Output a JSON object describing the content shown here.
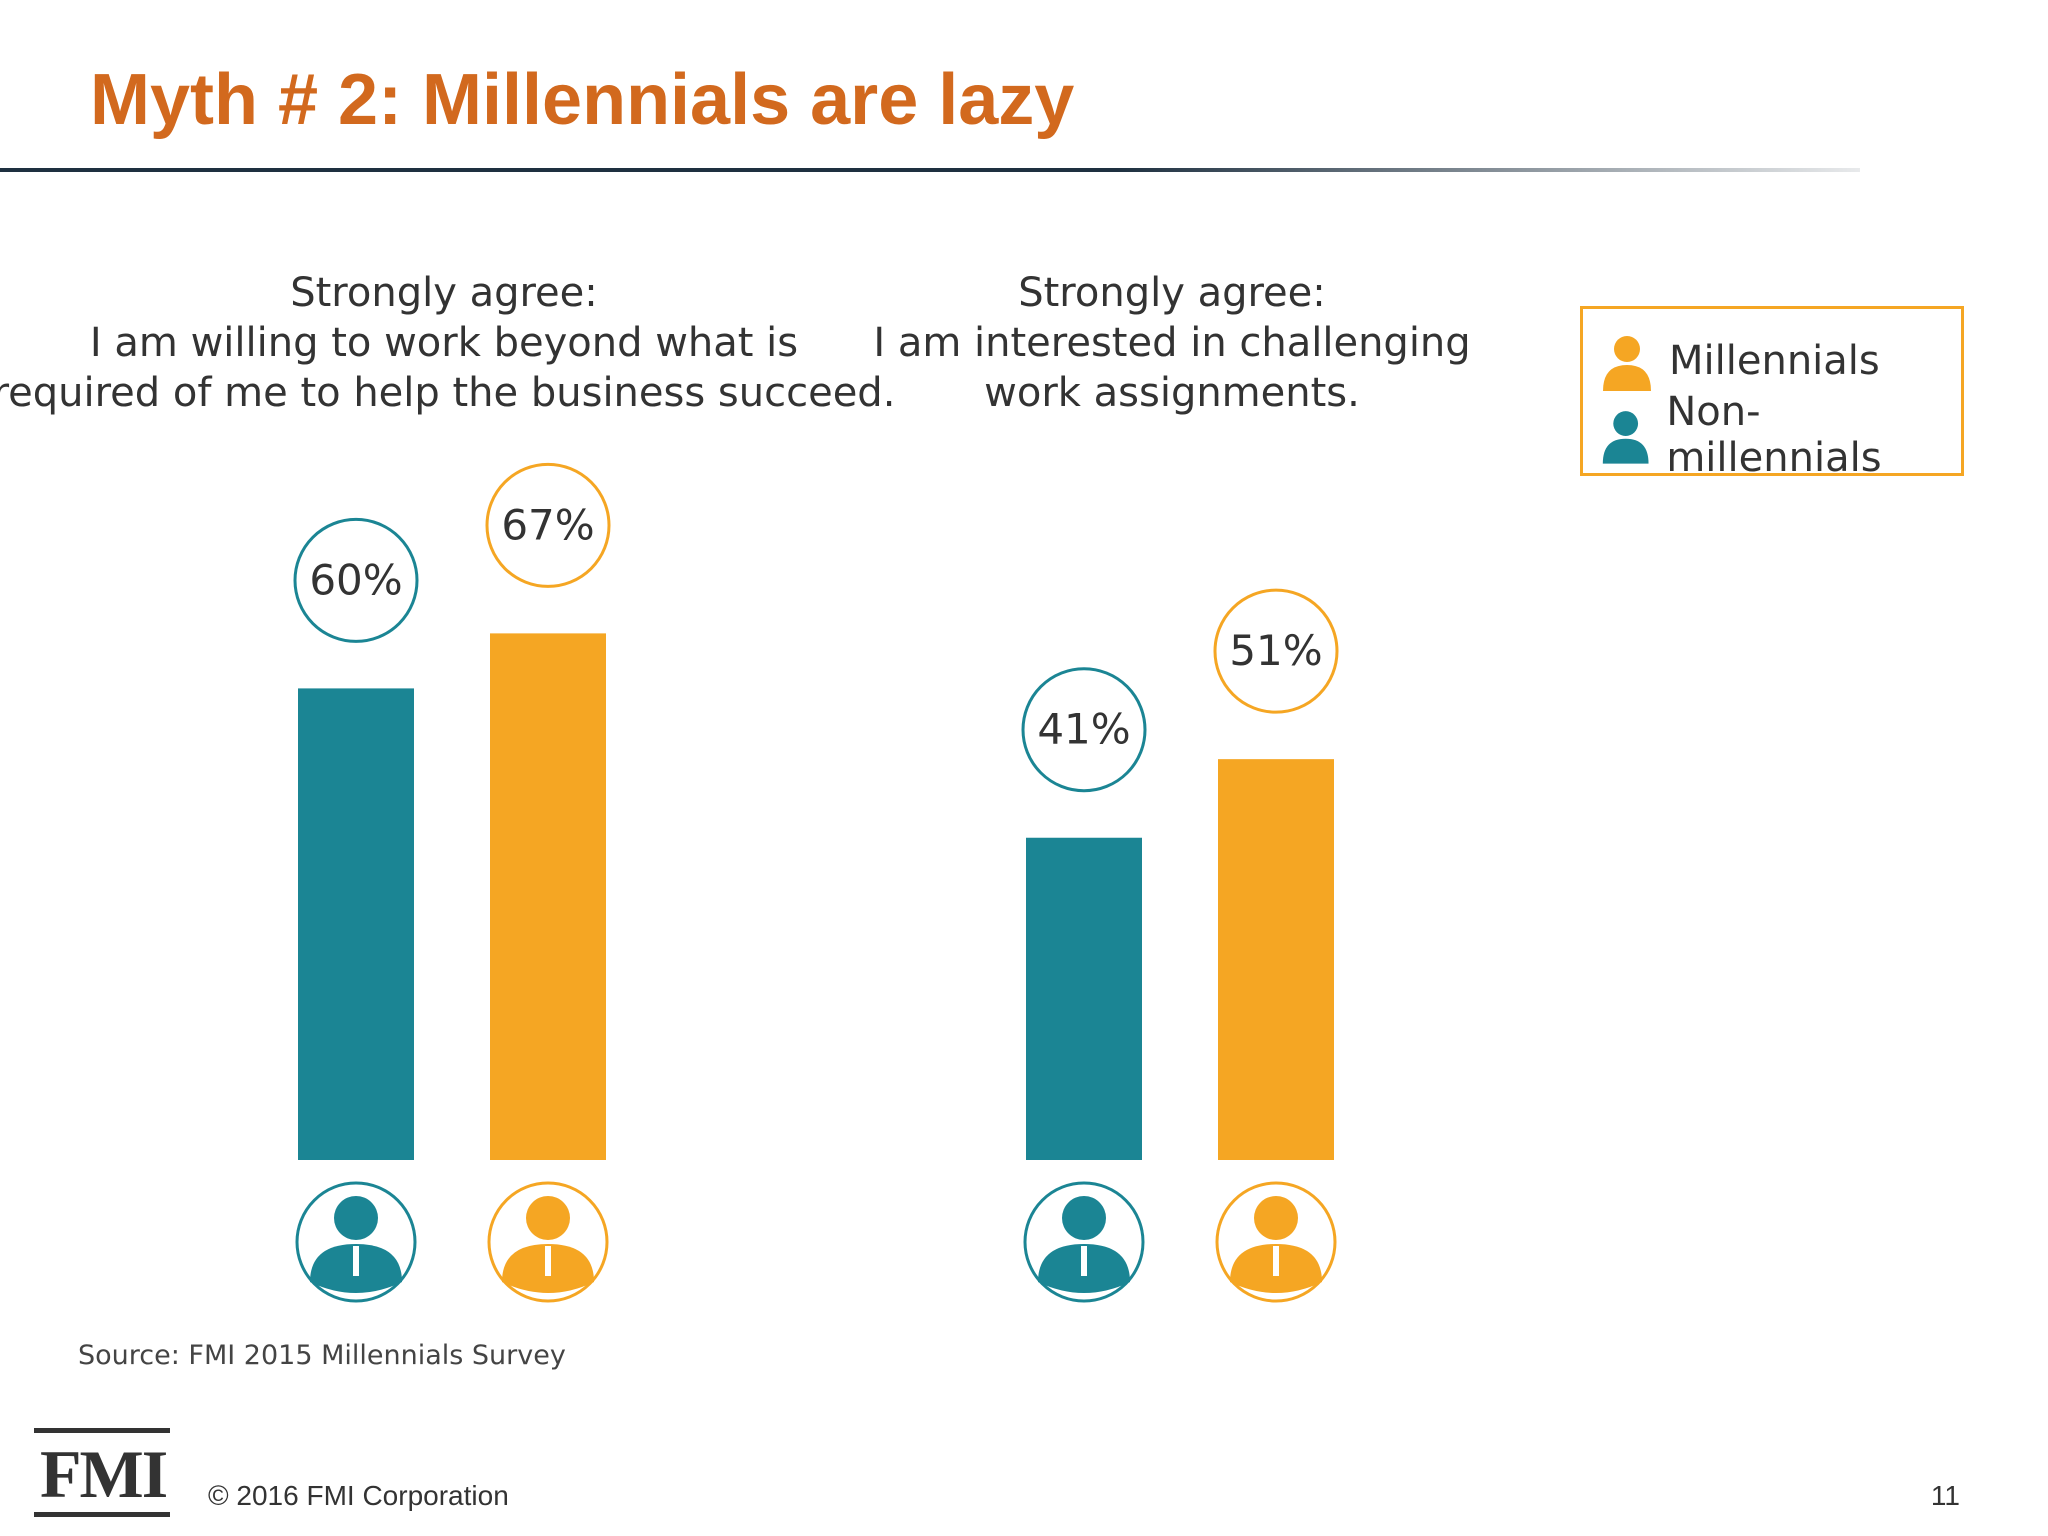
{
  "slide": {
    "title": "Myth # 2: Millennials are lazy",
    "source": "Source: FMI 2015 Millennials Survey",
    "logo": "FMI",
    "copyright": "© 2016 FMI Corporation",
    "page_number": "11"
  },
  "colors": {
    "millennials": "#F5A623",
    "non_millennials": "#1B8594",
    "title": "#D2691E"
  },
  "legend": {
    "items": [
      {
        "label": "Millennials",
        "color": "#F5A623",
        "icon": "person-icon"
      },
      {
        "label": "Non-millennials",
        "color": "#1B8594",
        "icon": "person-icon"
      }
    ]
  },
  "chart_data": [
    {
      "type": "bar",
      "title_lines": [
        "Strongly agree:",
        "I am willing to work beyond what is",
        "required of me to help the business succeed."
      ],
      "categories": [
        "Non-millennials",
        "Millennials"
      ],
      "values": [
        60,
        67
      ],
      "value_labels": [
        "60%",
        "67%"
      ],
      "colors": [
        "#1B8594",
        "#F5A623"
      ],
      "unit": "%"
    },
    {
      "type": "bar",
      "title_lines": [
        "Strongly agree:",
        "I am interested in challenging",
        "work assignments."
      ],
      "categories": [
        "Non-millennials",
        "Millennials"
      ],
      "values": [
        41,
        51
      ],
      "value_labels": [
        "41%",
        "51%"
      ],
      "colors": [
        "#1B8594",
        "#F5A623"
      ],
      "unit": "%"
    }
  ]
}
